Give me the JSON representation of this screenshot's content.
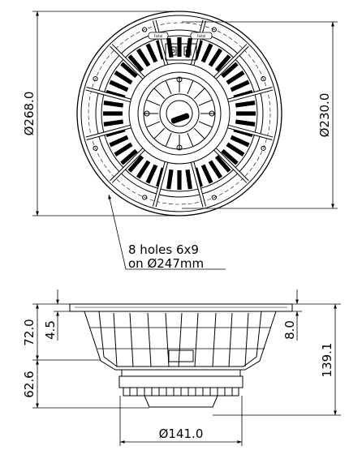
{
  "front_view": {
    "outer_diameter": "Ø268.0",
    "mount_diameter": "Ø230.0",
    "hole_note_line1": "8 holes 6x9",
    "hole_note_line2": "on Ø247mm",
    "logo_text": "Faital"
  },
  "side_view": {
    "height_upper": "72.0",
    "flange_thickness": "4.5",
    "height_lower": "62.6",
    "overall_depth": "139.1",
    "flange_offset": "8.0",
    "motor_diameter": "Ø141.0"
  }
}
